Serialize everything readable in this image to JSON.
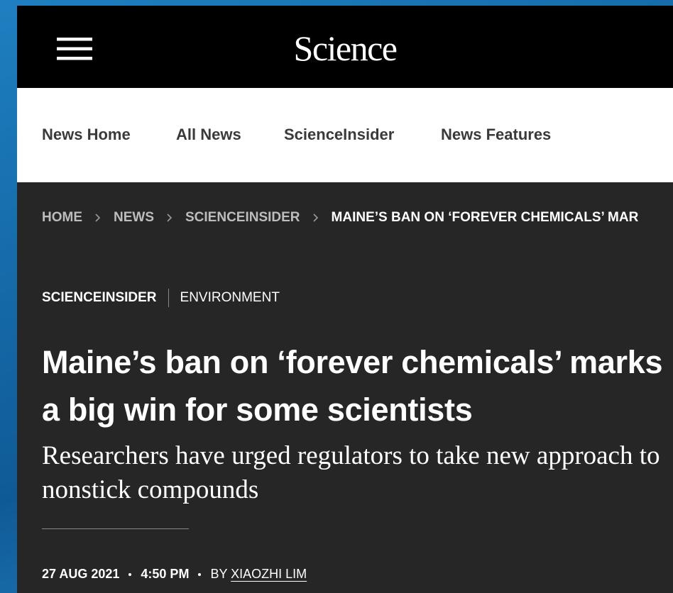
{
  "header": {
    "logo": "Science"
  },
  "nav": {
    "items": [
      "News Home",
      "All News",
      "ScienceInsider",
      "News Features"
    ]
  },
  "breadcrumb": {
    "items": [
      "HOME",
      "NEWS",
      "SCIENCEINSIDER",
      "MAINE’S BAN ON ‘FOREVER CHEMICALS’ MAR"
    ]
  },
  "tags": [
    "SCIENCEINSIDER",
    "ENVIRONMENT"
  ],
  "article": {
    "title": "Maine’s ban on ‘forever chemicals’ marks a big win for some scientists",
    "subtitle": "Researchers have urged regulators to take new approach to nonstick compounds"
  },
  "byline": {
    "date": "27 AUG 2021",
    "time": "4:50 PM",
    "prefix": "BY",
    "author": "XIAOZHI LIM"
  }
}
